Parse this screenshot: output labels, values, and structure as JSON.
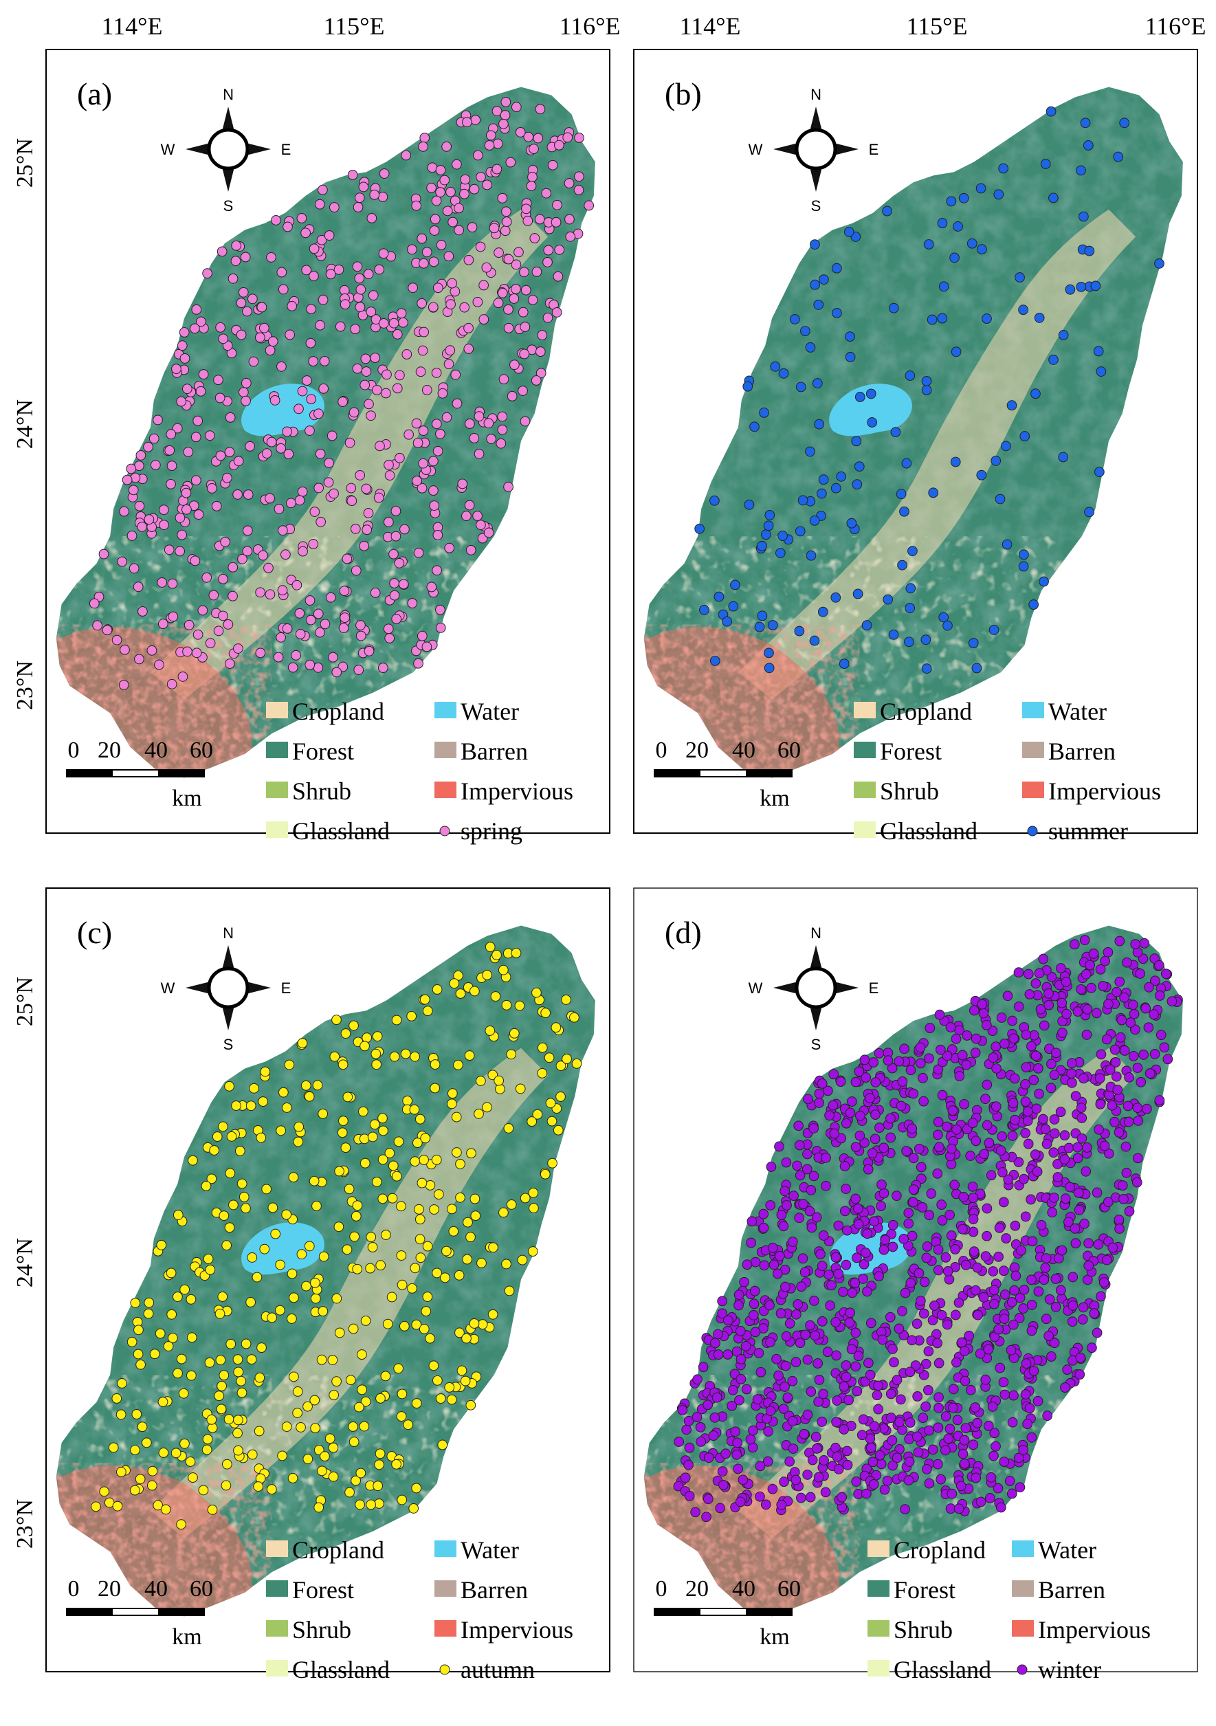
{
  "top_axis": {
    "left_ticks": [
      "114°E",
      "115°E",
      "116°E"
    ],
    "right_ticks": [
      "114°E",
      "115°E",
      "116°E"
    ]
  },
  "panels": [
    {
      "id": "a",
      "label": "(a)",
      "lat_ticks": [
        "25°N",
        "24°N",
        "23°N"
      ],
      "compass": {
        "n": "N",
        "s": "S",
        "e": "E",
        "w": "W"
      },
      "scalebar": {
        "ticks": [
          "0",
          "20",
          "40",
          "60"
        ],
        "unit": "km"
      },
      "legend": {
        "cropland": "Cropland",
        "water": "Water",
        "forest": "Forest",
        "barren": "Barren",
        "shrub": "Shrub",
        "impervious": "Impervious",
        "glassland": "Glassland",
        "points": "spring"
      },
      "point_color": "#ee82d8",
      "point_count": 620
    },
    {
      "id": "b",
      "label": "(b)",
      "lat_ticks": [],
      "compass": {
        "n": "N",
        "s": "S",
        "e": "E",
        "w": "W"
      },
      "scalebar": {
        "ticks": [
          "0",
          "20",
          "40",
          "60"
        ],
        "unit": "km"
      },
      "legend": {
        "cropland": "Cropland",
        "water": "Water",
        "forest": "Forest",
        "barren": "Barren",
        "shrub": "Shrub",
        "impervious": "Impervious",
        "glassland": "Glassland",
        "points": "summer"
      },
      "point_color": "#1e64e6",
      "point_count": 150
    },
    {
      "id": "c",
      "label": "(c)",
      "lat_ticks": [
        "25°N",
        "24°N",
        "23°N"
      ],
      "compass": {
        "n": "N",
        "s": "S",
        "e": "E",
        "w": "W"
      },
      "scalebar": {
        "ticks": [
          "0",
          "20",
          "40",
          "60"
        ],
        "unit": "km"
      },
      "legend": {
        "cropland": "Cropland",
        "water": "Water",
        "forest": "Forest",
        "barren": "Barren",
        "shrub": "Shrub",
        "impervious": "Impervious",
        "glassland": "Glassland",
        "points": "autumn"
      },
      "point_color": "#ffee10",
      "point_count": 450
    },
    {
      "id": "d",
      "label": "(d)",
      "lat_ticks": [],
      "compass": {
        "n": "N",
        "s": "S",
        "e": "E",
        "w": "W"
      },
      "scalebar": {
        "ticks": [
          "0",
          "20",
          "40",
          "60"
        ],
        "unit": "km"
      },
      "legend": {
        "cropland": "Cropland",
        "water": "Water",
        "forest": "Forest",
        "barren": "Barren",
        "shrub": "Shrub",
        "impervious": "Impervious",
        "glassland": "Glassland",
        "points": "winter"
      },
      "point_color": "#a010e0",
      "point_count": 1400
    }
  ],
  "landcover_colors": {
    "cropland": "#f5dcb0",
    "water": "#5ad0f0",
    "forest": "#3f8a73",
    "barren": "#bba59a",
    "shrub": "#a3c664",
    "impervious": "#f06a5e",
    "glassland": "#eaf7b8",
    "forest_dark": "#235f4e"
  }
}
